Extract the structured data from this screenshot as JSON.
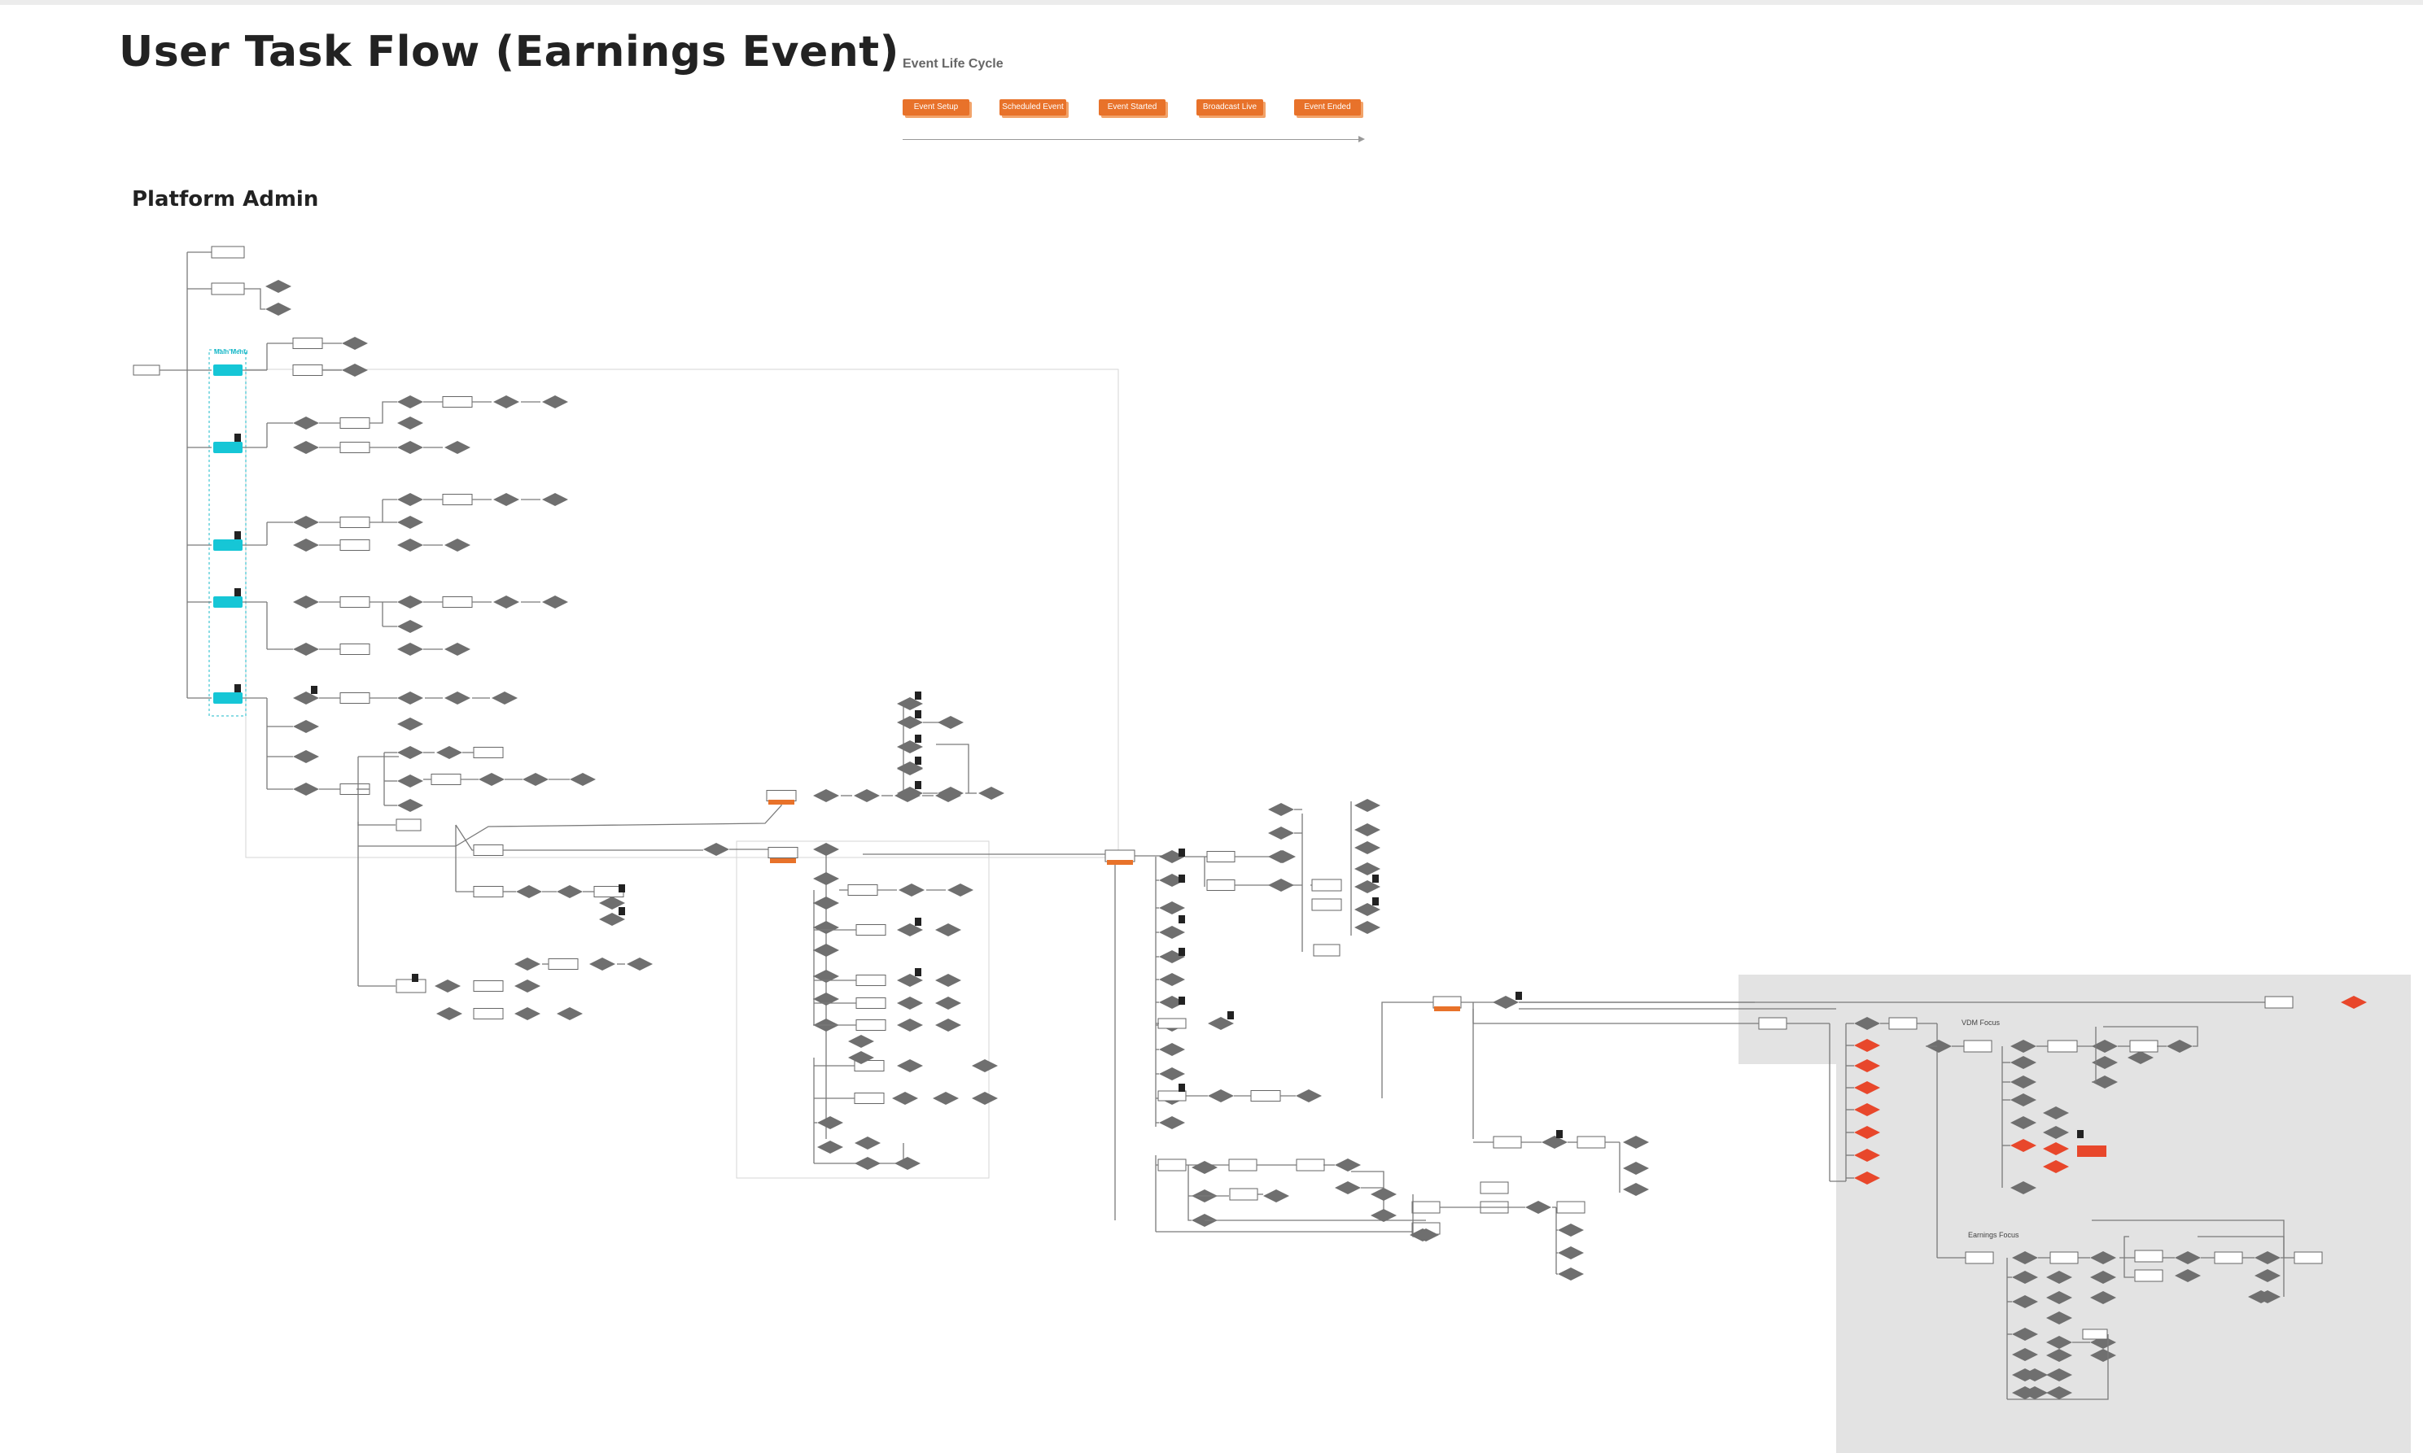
{
  "page": {
    "title": "User Task Flow (Earnings Event)"
  },
  "lifecycle": {
    "title": "Event Life Cycle",
    "stages": [
      "Event Setup",
      "Scheduled Event",
      "Event Started",
      "Broadcast Live",
      "Event Ended"
    ]
  },
  "section": {
    "label": "Platform Admin"
  },
  "diagram": {
    "main_menu_label": "Main Menu",
    "vdm_label": "VDM Focus",
    "earnings_label": "Earnings Focus",
    "colors": {
      "diamond": "#6f6f6f",
      "highlight_diamond": "#e8472b",
      "menu_node": "#16c6d6",
      "lifecycle": "#e8722a",
      "connector": "#7a7a7a",
      "panel": "#e3e3e3"
    }
  }
}
